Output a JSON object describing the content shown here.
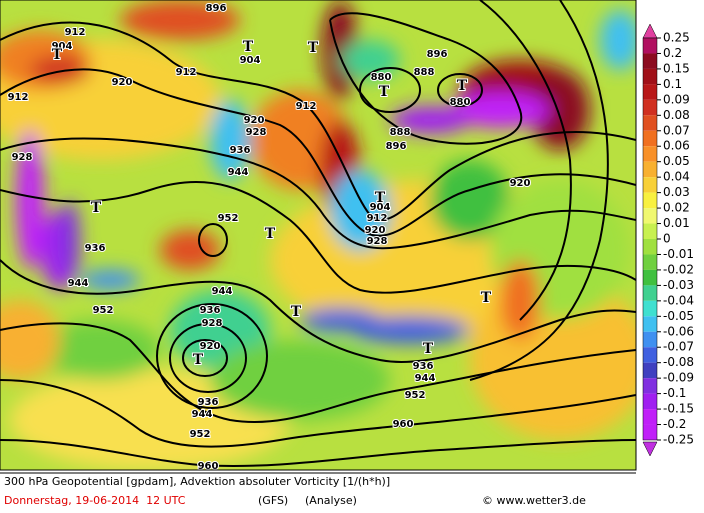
{
  "map": {
    "contour_labels": [
      "912",
      "904",
      "896",
      "904",
      "912",
      "912",
      "920",
      "912",
      "920",
      "928",
      "936",
      "944",
      "952",
      "880",
      "888",
      "896",
      "880",
      "888",
      "896",
      "920",
      "904",
      "912",
      "920",
      "928",
      "928",
      "936",
      "944",
      "952",
      "944",
      "936",
      "928",
      "920",
      "936",
      "944",
      "952",
      "960",
      "952",
      "960",
      "936",
      "944"
    ],
    "low_markers": [
      "T",
      "T",
      "T",
      "T",
      "T",
      "T",
      "T",
      "T",
      "T",
      "T",
      "T",
      "T"
    ]
  },
  "colorbar": {
    "ticks": [
      0.25,
      0.2,
      0.15,
      0.1,
      0.09,
      0.08,
      0.07,
      0.06,
      0.05,
      0.04,
      0.03,
      0.02,
      0.01,
      0,
      -0.01,
      -0.02,
      -0.03,
      -0.04,
      -0.05,
      -0.06,
      -0.07,
      -0.08,
      -0.09,
      -0.1,
      -0.15,
      -0.2,
      -0.25
    ],
    "colors": [
      "#b01060",
      "#8c0c20",
      "#a01018",
      "#b81818",
      "#d03020",
      "#e05020",
      "#f07020",
      "#f89028",
      "#f8b030",
      "#f8d038",
      "#f8f040",
      "#f0f870",
      "#c8f050",
      "#a0e040",
      "#70d040",
      "#40c040",
      "#40d090",
      "#40e0d0",
      "#40c0f0",
      "#4090f0",
      "#4060e0",
      "#4040c0",
      "#8030e0",
      "#a020f0",
      "#c020f8",
      "#c020f8"
    ]
  },
  "footer": {
    "title": "300 hPa Geopotential [gpdam], Advektion absoluter Vorticity [1/(h*h)]",
    "date": "Donnerstag, 19-06-2014  12 UTC",
    "model": "(GFS)",
    "run": "(Analyse)",
    "credit": "© www.wetter3.de"
  }
}
